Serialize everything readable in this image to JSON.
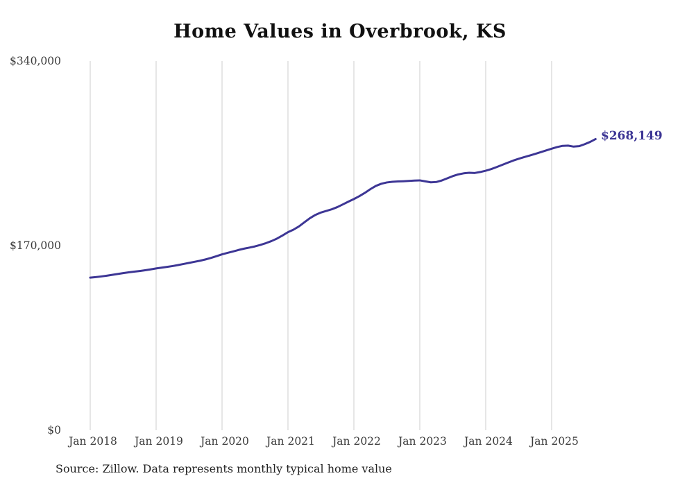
{
  "chart_data": {
    "type": "line",
    "title": "Home Values in Overbrook, KS",
    "xlabel": "",
    "ylabel": "",
    "ylim": [
      0,
      340000
    ],
    "grid": "vertical-only",
    "legend": "none",
    "y_ticks": [
      {
        "value": 0,
        "label": "$0"
      },
      {
        "value": 170000,
        "label": "$170,000"
      },
      {
        "value": 340000,
        "label": "$340,000"
      }
    ],
    "x_tick_labels": [
      "Jan 2018",
      "Jan 2019",
      "Jan 2020",
      "Jan 2021",
      "Jan 2022",
      "Jan 2023",
      "Jan 2024",
      "Jan 2025"
    ],
    "end_label": "$268,149",
    "latest_value": 268149,
    "source_note": "Source: Zillow. Data represents monthly typical home value",
    "line_color": "#3d3695",
    "gridline_color": "#cccccc",
    "tick_label_color": "#3a3a3a",
    "series": [
      {
        "name": "Typical home value",
        "color": "#3d3695",
        "x": [
          "2018-01",
          "2018-02",
          "2018-03",
          "2018-04",
          "2018-05",
          "2018-06",
          "2018-07",
          "2018-08",
          "2018-09",
          "2018-10",
          "2018-11",
          "2018-12",
          "2019-01",
          "2019-02",
          "2019-03",
          "2019-04",
          "2019-05",
          "2019-06",
          "2019-07",
          "2019-08",
          "2019-09",
          "2019-10",
          "2019-11",
          "2019-12",
          "2020-01",
          "2020-02",
          "2020-03",
          "2020-04",
          "2020-05",
          "2020-06",
          "2020-07",
          "2020-08",
          "2020-09",
          "2020-10",
          "2020-11",
          "2020-12",
          "2021-01",
          "2021-02",
          "2021-03",
          "2021-04",
          "2021-05",
          "2021-06",
          "2021-07",
          "2021-08",
          "2021-09",
          "2021-10",
          "2021-11",
          "2021-12",
          "2022-01",
          "2022-02",
          "2022-03",
          "2022-04",
          "2022-05",
          "2022-06",
          "2022-07",
          "2022-08",
          "2022-09",
          "2022-10",
          "2022-11",
          "2022-12",
          "2023-01",
          "2023-02",
          "2023-03",
          "2023-04",
          "2023-05",
          "2023-06",
          "2023-07",
          "2023-08",
          "2023-09",
          "2023-10",
          "2023-11",
          "2023-12",
          "2024-01",
          "2024-02",
          "2024-03",
          "2024-04",
          "2024-05",
          "2024-06",
          "2024-07",
          "2024-08",
          "2024-09",
          "2024-10",
          "2024-11",
          "2024-12",
          "2025-01",
          "2025-02",
          "2025-03",
          "2025-04",
          "2025-05",
          "2025-06",
          "2025-07",
          "2025-08",
          "2025-09"
        ],
        "values": [
          140500,
          141000,
          141600,
          142300,
          143100,
          143900,
          144700,
          145400,
          146000,
          146600,
          147300,
          148100,
          149000,
          149700,
          150400,
          151200,
          152100,
          153100,
          154100,
          155100,
          156100,
          157300,
          158700,
          160300,
          162000,
          163300,
          164600,
          166000,
          167200,
          168200,
          169300,
          170700,
          172300,
          174200,
          176500,
          179300,
          182400,
          184700,
          187700,
          191500,
          195300,
          198300,
          200500,
          202000,
          203500,
          205500,
          208000,
          210500,
          212900,
          215600,
          218600,
          222000,
          225000,
          227000,
          228200,
          228800,
          229100,
          229300,
          229600,
          229900,
          230100,
          229200,
          228300,
          228600,
          230000,
          232000,
          234000,
          235600,
          236600,
          237100,
          236900,
          237800,
          239000,
          240500,
          242400,
          244400,
          246400,
          248300,
          250000,
          251500,
          253000,
          254500,
          256100,
          257700,
          259300,
          260800,
          261900,
          262100,
          261200,
          261600,
          263400,
          265500,
          268149
        ]
      }
    ]
  }
}
